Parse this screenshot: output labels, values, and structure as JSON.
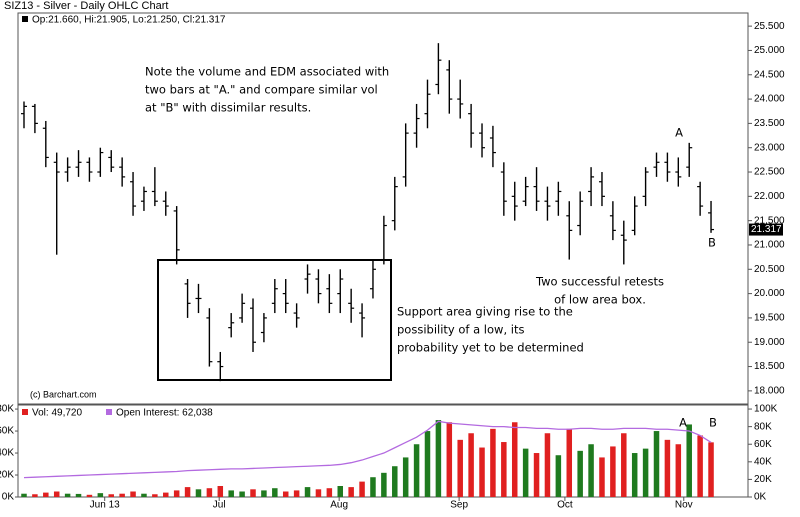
{
  "chart_data": {
    "type": "ohlc",
    "title": "SIZ13 - Silver - Daily OHLC Chart",
    "ohlc_legend": "Op:21.660, Hi:21.905, Lo:21.250, Cl:21.317",
    "credit": "(c) Barchart.com",
    "color": "#000000",
    "open": [
      23.7,
      23.85,
      23.4,
      22.7,
      22.5,
      22.6,
      22.7,
      22.5,
      22.8,
      22.6,
      22.3,
      21.9,
      22.1,
      21.9,
      21.7,
      20.2,
      19.9,
      19.5,
      18.6,
      19.3,
      19.5,
      19.7,
      19.2,
      19.8,
      20.0,
      19.6,
      20.3,
      20.3,
      20.1,
      20.0,
      19.8,
      19.6,
      20.1,
      20.7,
      21.5,
      22.4,
      23.3,
      23.7,
      24.3,
      24.6,
      24.0,
      23.7,
      23.3,
      23.2,
      22.5,
      22.0,
      21.9,
      22.2,
      21.9,
      21.9,
      21.6,
      21.4,
      22.1,
      22.3,
      21.6,
      21.2,
      21.3,
      22.0,
      22.6,
      22.7,
      22.5,
      22.6,
      22.2,
      21.66
    ],
    "high": [
      23.95,
      23.9,
      23.55,
      22.9,
      22.8,
      22.95,
      22.8,
      23.0,
      22.95,
      22.8,
      22.5,
      22.2,
      22.6,
      22.1,
      21.8,
      20.3,
      20.2,
      19.7,
      18.8,
      19.6,
      20.0,
      19.9,
      19.6,
      20.3,
      20.3,
      19.8,
      20.6,
      20.5,
      20.4,
      20.5,
      20.1,
      19.8,
      20.7,
      21.6,
      22.4,
      23.5,
      23.9,
      24.4,
      25.15,
      24.8,
      24.4,
      23.9,
      23.5,
      23.45,
      22.7,
      22.3,
      22.4,
      22.6,
      22.2,
      22.3,
      21.9,
      22.1,
      22.6,
      22.5,
      21.9,
      21.5,
      22.0,
      22.6,
      22.9,
      22.9,
      22.8,
      23.1,
      22.3,
      21.905
    ],
    "low": [
      23.4,
      23.3,
      22.6,
      20.8,
      22.3,
      22.4,
      22.3,
      22.4,
      22.5,
      22.2,
      21.6,
      21.7,
      21.8,
      21.6,
      20.6,
      19.5,
      19.6,
      18.5,
      18.2,
      19.1,
      19.4,
      18.8,
      19.0,
      19.6,
      19.6,
      19.3,
      20.0,
      19.8,
      19.6,
      19.6,
      19.4,
      19.1,
      19.9,
      20.6,
      21.3,
      22.2,
      23.0,
      23.4,
      24.1,
      23.7,
      23.6,
      23.0,
      22.8,
      22.6,
      21.6,
      21.5,
      21.8,
      21.7,
      21.5,
      21.6,
      20.7,
      21.2,
      21.8,
      21.8,
      21.1,
      20.6,
      21.2,
      21.8,
      22.4,
      22.3,
      22.2,
      22.4,
      21.6,
      21.25
    ],
    "close": [
      23.85,
      23.5,
      22.8,
      22.5,
      22.6,
      22.7,
      22.5,
      22.9,
      22.6,
      22.4,
      21.8,
      22.1,
      21.9,
      21.8,
      20.9,
      19.8,
      19.9,
      18.6,
      18.5,
      19.4,
      19.8,
      19.0,
      19.5,
      20.1,
      19.8,
      19.5,
      20.4,
      20.0,
      19.8,
      20.3,
      19.7,
      19.5,
      20.5,
      21.4,
      22.2,
      23.3,
      23.6,
      24.1,
      24.8,
      24.0,
      23.9,
      23.3,
      23.0,
      22.9,
      21.9,
      21.8,
      22.2,
      21.9,
      21.8,
      22.1,
      21.3,
      21.9,
      22.4,
      22.0,
      21.3,
      21.1,
      21.8,
      22.5,
      22.7,
      22.5,
      22.4,
      23.0,
      21.8,
      21.317
    ],
    "ylim": [
      17.73,
      25.77
    ],
    "yticks": [
      {
        "value": 18,
        "label": "18.000"
      },
      {
        "value": 18.5,
        "label": "18.500"
      },
      {
        "value": 19,
        "label": "19.000"
      },
      {
        "value": 19.5,
        "label": "19.500"
      },
      {
        "value": 20,
        "label": "20.000"
      },
      {
        "value": 20.5,
        "label": "20.500"
      },
      {
        "value": 21,
        "label": "21.000"
      },
      {
        "value": 21.5,
        "label": "21.500"
      },
      {
        "value": 22,
        "label": "22.000"
      },
      {
        "value": 22.5,
        "label": "22.500"
      },
      {
        "value": 23,
        "label": "23.000"
      },
      {
        "value": 23.5,
        "label": "23.500"
      },
      {
        "value": 24,
        "label": "24.000"
      },
      {
        "value": 24.5,
        "label": "24.500"
      },
      {
        "value": 25,
        "label": "25.000"
      },
      {
        "value": 25.5,
        "label": "25.500"
      }
    ],
    "xlim": [
      -0.55,
      66.39
    ],
    "xticks": [
      {
        "value": 7.4,
        "label": "Jun 13"
      },
      {
        "value": 17.9,
        "label": "Jul"
      },
      {
        "value": 28.9,
        "label": "Aug"
      },
      {
        "value": 39.9,
        "label": "Sep"
      },
      {
        "value": 49.6,
        "label": "Oct"
      },
      {
        "value": 60.5,
        "label": "Nov"
      }
    ],
    "annotations": [
      {
        "lines": [
          "Note the volume and EDM associated with",
          "two bars at \"A.\" and compare similar vol",
          "at \"B\" with dissimilar results."
        ]
      },
      {
        "lines": [
          "Support area giving rise to the",
          "possibility of a low, its",
          "probability yet to be determined"
        ]
      },
      {
        "lines": [
          "Two successful retests",
          "of low area box."
        ]
      },
      {
        "lines": [
          "A"
        ]
      },
      {
        "lines": [
          "B"
        ]
      },
      {
        "lines": [
          "A"
        ]
      },
      {
        "lines": [
          "B"
        ]
      }
    ],
    "volume_panel": {
      "series": [
        {
          "name": "Vol: 49,720",
          "up_color": "#1f7a1f",
          "down_color": "#e02020",
          "values": [
            3000,
            2500,
            4000,
            5000,
            3000,
            2800,
            2000,
            3500,
            2500,
            3000,
            5000,
            3000,
            2500,
            4000,
            6000,
            9000,
            7000,
            8000,
            10000,
            6000,
            5000,
            7000,
            6000,
            8000,
            5000,
            6000,
            9000,
            7000,
            8000,
            10000,
            9000,
            14000,
            18000,
            22000,
            28000,
            36000,
            48000,
            60000,
            70000,
            68000,
            52000,
            58000,
            45000,
            62000,
            50000,
            68000,
            44000,
            40000,
            58000,
            38000,
            62000,
            42000,
            48000,
            36000,
            46000,
            58000,
            40000,
            44000,
            60000,
            52000,
            48000,
            66000,
            56000,
            49720
          ]
        },
        {
          "name": "Open Interest: 62,038",
          "color": "#b36ae0",
          "axis": "y2",
          "values": [
            22000,
            22500,
            23000,
            23500,
            24000,
            24500,
            25000,
            25500,
            26000,
            26500,
            27000,
            27500,
            28000,
            28500,
            29000,
            30000,
            30500,
            31000,
            31500,
            32000,
            32000,
            32500,
            33000,
            33500,
            34000,
            34500,
            35000,
            35500,
            36000,
            37000,
            39000,
            42000,
            46000,
            50000,
            56000,
            62000,
            68000,
            76000,
            86000,
            84000,
            83000,
            82000,
            81000,
            80000,
            80000,
            79000,
            79000,
            78000,
            78000,
            77000,
            77000,
            78000,
            78000,
            77000,
            77000,
            78000,
            78000,
            78000,
            77000,
            77000,
            76000,
            75000,
            70000,
            62038
          ]
        }
      ],
      "ylim": [
        0,
        83700
      ],
      "yticks": [
        {
          "value": 0,
          "label": "0K"
        },
        {
          "value": 20000,
          "label": "20K"
        },
        {
          "value": 40000,
          "label": "40K"
        },
        {
          "value": 60000,
          "label": "60K"
        },
        {
          "value": 80000,
          "label": "80K"
        }
      ],
      "y2lim": [
        0,
        104600
      ],
      "y2ticks": [
        {
          "value": 0,
          "label": "0K"
        },
        {
          "value": 20000,
          "label": "20K"
        },
        {
          "value": 40000,
          "label": "40K"
        },
        {
          "value": 60000,
          "label": "60K"
        },
        {
          "value": 80000,
          "label": "80K"
        },
        {
          "value": 100000,
          "label": "100K"
        }
      ]
    }
  }
}
